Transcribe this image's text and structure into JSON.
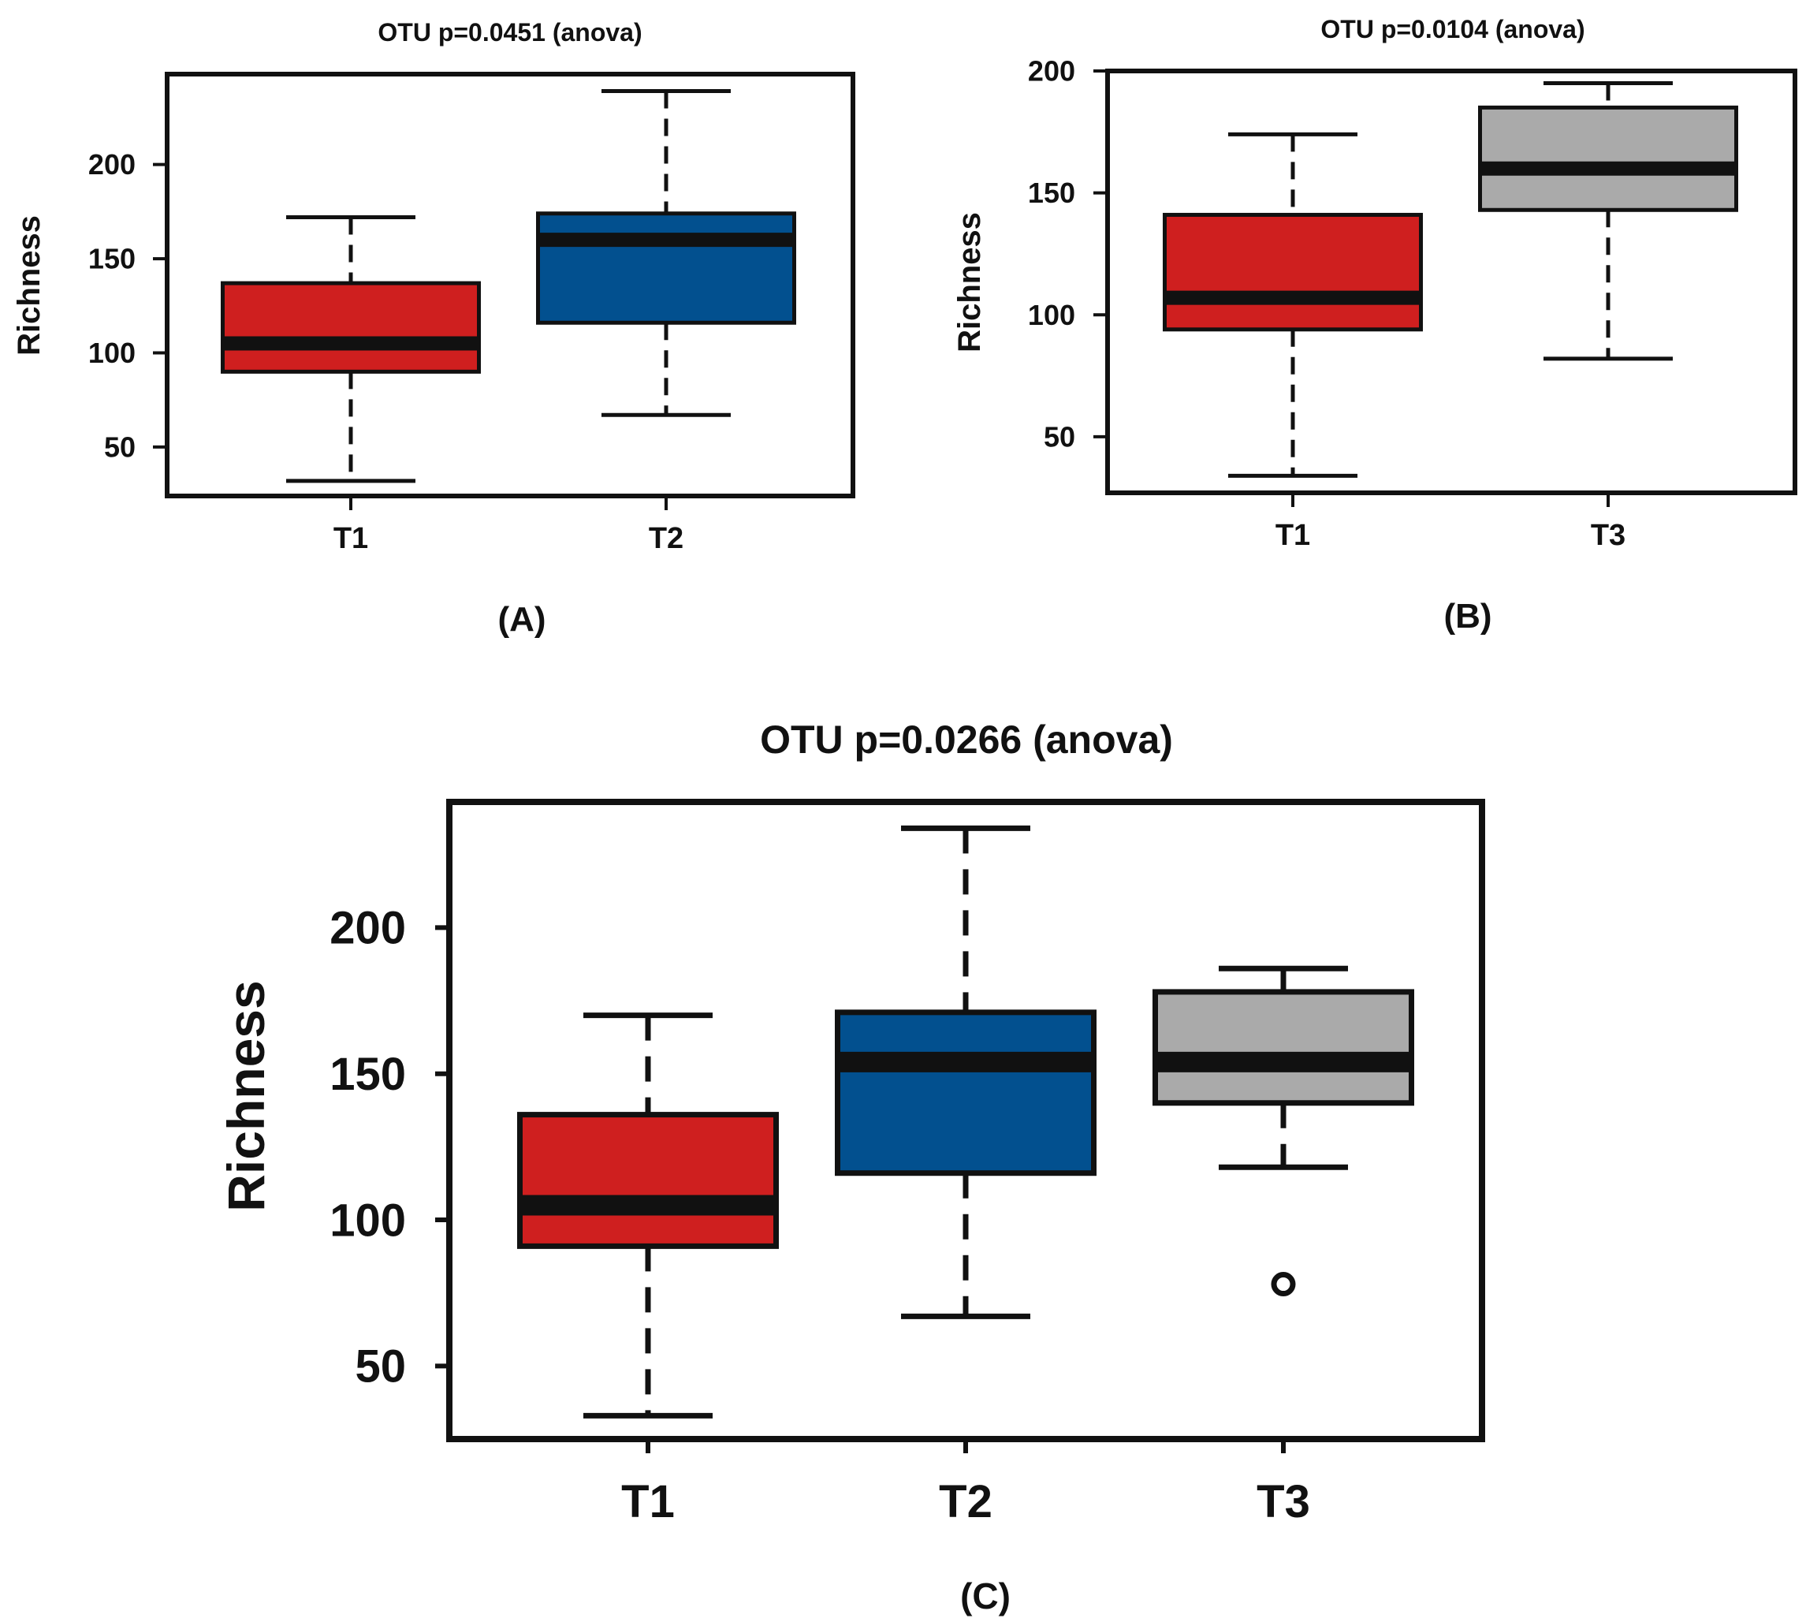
{
  "colors": {
    "T1": "#cf1f1f",
    "T2": "#02508f",
    "T3": "#aaaaaa",
    "ink": "#111111"
  },
  "chart_data": [
    {
      "panel": "(A)",
      "type": "box",
      "title": "OTU p=0.0451 (anova)",
      "xlabel": "",
      "ylabel": "Richness",
      "yticks": [
        50,
        100,
        150,
        200
      ],
      "ylim": [
        24,
        248
      ],
      "categories": [
        "T1",
        "T2"
      ],
      "boxes": [
        {
          "name": "T1",
          "whisker_low": 32,
          "q1": 90,
          "median": 105,
          "q3": 137,
          "whisker_high": 172,
          "outliers": []
        },
        {
          "name": "T2",
          "whisker_low": 67,
          "q1": 116,
          "median": 160,
          "q3": 174,
          "whisker_high": 239,
          "outliers": []
        }
      ]
    },
    {
      "panel": "(B)",
      "type": "box",
      "title": "OTU p=0.0104 (anova)",
      "xlabel": "",
      "ylabel": "Richness",
      "yticks": [
        50,
        100,
        150,
        200
      ],
      "ylim": [
        27,
        200
      ],
      "categories": [
        "T1",
        "T3"
      ],
      "boxes": [
        {
          "name": "T1",
          "whisker_low": 34,
          "q1": 94,
          "median": 107,
          "q3": 141,
          "whisker_high": 174,
          "outliers": []
        },
        {
          "name": "T3",
          "whisker_low": 82,
          "q1": 143,
          "median": 160,
          "q3": 185,
          "whisker_high": 195,
          "outliers": []
        }
      ]
    },
    {
      "panel": "(C)",
      "type": "box",
      "title": "OTU p=0.0266 (anova)",
      "xlabel": "",
      "ylabel": "Richness",
      "yticks": [
        50,
        100,
        150,
        200
      ],
      "ylim": [
        25,
        243
      ],
      "categories": [
        "T1",
        "T2",
        "T3"
      ],
      "boxes": [
        {
          "name": "T1",
          "whisker_low": 33,
          "q1": 91,
          "median": 105,
          "q3": 136,
          "whisker_high": 170,
          "outliers": []
        },
        {
          "name": "T2",
          "whisker_low": 67,
          "q1": 116,
          "median": 154,
          "q3": 171,
          "whisker_high": 234,
          "outliers": []
        },
        {
          "name": "T3",
          "whisker_low": 118,
          "q1": 140,
          "median": 154,
          "q3": 178,
          "whisker_high": 186,
          "outliers": [
            78
          ]
        }
      ]
    }
  ]
}
